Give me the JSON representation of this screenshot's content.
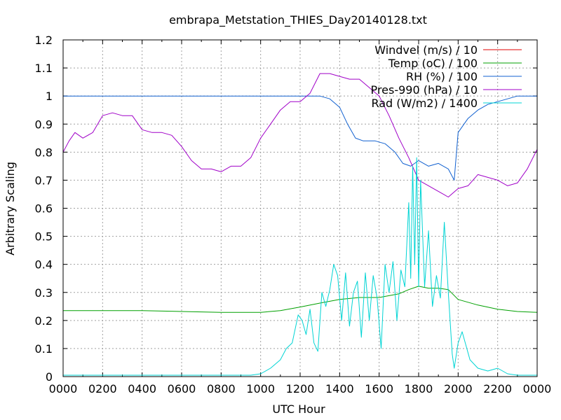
{
  "chart_data": {
    "type": "line",
    "title": "embrapa_Metstation_THIES_Day20140128.txt",
    "xlabel": "UTC Hour",
    "ylabel": "Arbitrary Scaling",
    "xlim": [
      0,
      24
    ],
    "ylim": [
      0,
      1.2
    ],
    "x_ticks": [
      0,
      2,
      4,
      6,
      8,
      10,
      12,
      14,
      16,
      18,
      20,
      22,
      24
    ],
    "x_tick_labels": [
      "0000",
      "0200",
      "0400",
      "0600",
      "0800",
      "1000",
      "1200",
      "1400",
      "1600",
      "1800",
      "2000",
      "2200",
      "0000"
    ],
    "y_ticks": [
      0,
      0.1,
      0.2,
      0.3,
      0.4,
      0.5,
      0.6,
      0.7,
      0.8,
      0.9,
      1,
      1.1,
      1.2
    ],
    "y_tick_labels": [
      "0",
      "0.1",
      "0.2",
      "0.3",
      "0.4",
      "0.5",
      "0.6",
      "0.7",
      "0.8",
      "0.9",
      "1",
      "1.1",
      "1.2"
    ],
    "grid": true,
    "legend_position": "top-right",
    "series": [
      {
        "name": "Windvel (m/s) / 10",
        "color": "#e00000",
        "x": [],
        "y": []
      },
      {
        "name": "Temp (oC) / 100",
        "color": "#00a000",
        "x": [
          0,
          2,
          4,
          6,
          8,
          10,
          11,
          12,
          13,
          14,
          15,
          16,
          17,
          17.5,
          18,
          18.5,
          19,
          19.5,
          20,
          21,
          22,
          23,
          24
        ],
        "y": [
          0.235,
          0.235,
          0.235,
          0.232,
          0.229,
          0.229,
          0.235,
          0.248,
          0.262,
          0.275,
          0.282,
          0.282,
          0.295,
          0.31,
          0.322,
          0.315,
          0.315,
          0.31,
          0.275,
          0.255,
          0.24,
          0.232,
          0.229
        ]
      },
      {
        "name": "RH (%) / 100",
        "color": "#1060d0",
        "x": [
          0,
          13,
          13.5,
          14,
          14.4,
          14.8,
          15.2,
          15.8,
          16.3,
          16.8,
          17.2,
          17.6,
          18,
          18.5,
          19,
          19.5,
          19.8,
          20,
          20.5,
          21,
          21.5,
          22,
          22.5,
          23,
          24
        ],
        "y": [
          1,
          1,
          0.99,
          0.96,
          0.9,
          0.85,
          0.84,
          0.84,
          0.83,
          0.8,
          0.76,
          0.75,
          0.77,
          0.75,
          0.76,
          0.74,
          0.7,
          0.87,
          0.92,
          0.95,
          0.97,
          0.98,
          0.99,
          1,
          1
        ]
      },
      {
        "name": "Pres-990 (hPa) / 10",
        "color": "#a000c8",
        "x": [
          0,
          0.3,
          0.6,
          1,
          1.5,
          2,
          2.5,
          3,
          3.5,
          4,
          4.5,
          5,
          5.5,
          6,
          6.5,
          7,
          7.5,
          8,
          8.5,
          9,
          9.5,
          10,
          10.5,
          11,
          11.5,
          12,
          12.5,
          13,
          13.5,
          14,
          14.5,
          15,
          15.5,
          16,
          16.5,
          17,
          17.5,
          18,
          18.5,
          19,
          19.5,
          20,
          20.5,
          21,
          21.5,
          22,
          22.5,
          23,
          23.5,
          24
        ],
        "y": [
          0.8,
          0.84,
          0.87,
          0.85,
          0.87,
          0.93,
          0.94,
          0.93,
          0.93,
          0.88,
          0.87,
          0.87,
          0.86,
          0.82,
          0.77,
          0.74,
          0.74,
          0.73,
          0.75,
          0.75,
          0.78,
          0.85,
          0.9,
          0.95,
          0.98,
          0.98,
          1.01,
          1.08,
          1.08,
          1.07,
          1.06,
          1.06,
          1.03,
          1.0,
          0.93,
          0.85,
          0.78,
          0.7,
          0.68,
          0.66,
          0.64,
          0.67,
          0.68,
          0.72,
          0.71,
          0.7,
          0.68,
          0.69,
          0.74,
          0.81
        ]
      },
      {
        "name": "Rad (W/m2) / 1400",
        "color": "#00d4d4",
        "x": [
          0,
          9.5,
          10,
          10.5,
          11,
          11.3,
          11.6,
          11.9,
          12.1,
          12.3,
          12.5,
          12.7,
          12.9,
          13.1,
          13.3,
          13.5,
          13.7,
          13.9,
          14.1,
          14.3,
          14.5,
          14.7,
          14.9,
          15.1,
          15.3,
          15.5,
          15.7,
          15.9,
          16.1,
          16.3,
          16.5,
          16.7,
          16.9,
          17.1,
          17.3,
          17.5,
          17.6,
          17.7,
          17.8,
          17.9,
          18.0,
          18.1,
          18.3,
          18.5,
          18.7,
          18.9,
          19.1,
          19.3,
          19.5,
          19.7,
          19.8,
          20.0,
          20.2,
          20.4,
          20.6,
          21,
          21.5,
          22,
          22.5,
          23,
          24
        ],
        "y": [
          0.005,
          0.005,
          0.01,
          0.03,
          0.06,
          0.1,
          0.12,
          0.22,
          0.2,
          0.15,
          0.24,
          0.12,
          0.09,
          0.3,
          0.25,
          0.31,
          0.4,
          0.36,
          0.2,
          0.37,
          0.18,
          0.3,
          0.34,
          0.14,
          0.37,
          0.2,
          0.36,
          0.28,
          0.1,
          0.4,
          0.3,
          0.41,
          0.2,
          0.38,
          0.32,
          0.62,
          0.35,
          0.75,
          0.4,
          0.78,
          0.32,
          0.7,
          0.32,
          0.52,
          0.25,
          0.36,
          0.28,
          0.55,
          0.3,
          0.08,
          0.03,
          0.12,
          0.16,
          0.11,
          0.06,
          0.03,
          0.02,
          0.03,
          0.01,
          0.005,
          0.005
        ]
      }
    ]
  }
}
